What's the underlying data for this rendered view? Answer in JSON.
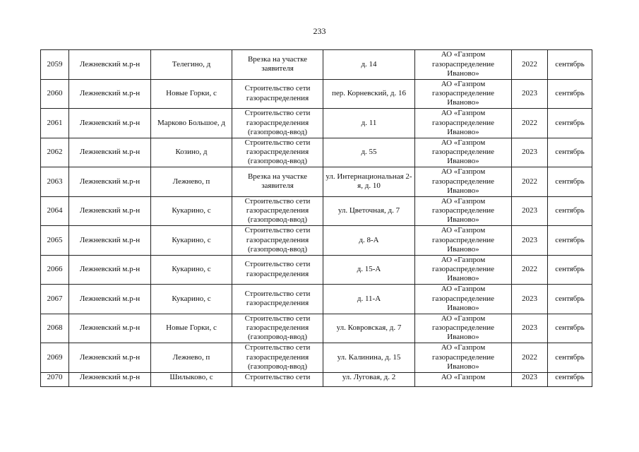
{
  "page_number": "233",
  "rows": [
    {
      "num": "2059",
      "district": "Лежневский м.р-н",
      "locality": "Телегино, д",
      "work": "Врезка на участке заявителя",
      "address": "д. 14",
      "org": "АО «Газпром газораспределение Иваново»",
      "year": "2022",
      "month": "сентябрь"
    },
    {
      "num": "2060",
      "district": "Лежневский м.р-н",
      "locality": "Новые Горки, с",
      "work": "Строительство сети газораспределения",
      "address": "пер. Корневский, д. 16",
      "org": "АО «Газпром газораспределение Иваново»",
      "year": "2023",
      "month": "сентябрь"
    },
    {
      "num": "2061",
      "district": "Лежневский м.р-н",
      "locality": "Марково Большое, д",
      "work": "Строительство сети газораспределения (газопровод-ввод)",
      "address": "д. 11",
      "org": "АО «Газпром газораспределение Иваново»",
      "year": "2022",
      "month": "сентябрь"
    },
    {
      "num": "2062",
      "district": "Лежневский м.р-н",
      "locality": "Козино, д",
      "work": "Строительство сети газораспределения (газопровод-ввод)",
      "address": "д. 55",
      "org": "АО «Газпром газораспределение Иваново»",
      "year": "2023",
      "month": "сентябрь"
    },
    {
      "num": "2063",
      "district": "Лежневский м.р-н",
      "locality": "Лежнево, п",
      "work": "Врезка на участке заявителя",
      "address": "ул. Интернациональная 2-я, д. 10",
      "org": "АО «Газпром газораспределение Иваново»",
      "year": "2022",
      "month": "сентябрь"
    },
    {
      "num": "2064",
      "district": "Лежневский м.р-н",
      "locality": "Кукарино, с",
      "work": "Строительство сети газораспределения (газопровод-ввод)",
      "address": "ул. Цветочная, д. 7",
      "org": "АО «Газпром газораспределение Иваново»",
      "year": "2023",
      "month": "сентябрь"
    },
    {
      "num": "2065",
      "district": "Лежневский м.р-н",
      "locality": "Кукарино, с",
      "work": "Строительство сети газораспределения (газопровод-ввод)",
      "address": "д. 8-А",
      "org": "АО «Газпром газораспределение Иваново»",
      "year": "2023",
      "month": "сентябрь"
    },
    {
      "num": "2066",
      "district": "Лежневский м.р-н",
      "locality": "Кукарино, с",
      "work": "Строительство сети газораспределения",
      "address": "д. 15-А",
      "org": "АО «Газпром газораспределение Иваново»",
      "year": "2022",
      "month": "сентябрь"
    },
    {
      "num": "2067",
      "district": "Лежневский м.р-н",
      "locality": "Кукарино, с",
      "work": "Строительство сети газораспределения",
      "address": "д. 11-А",
      "org": "АО «Газпром газораспределение Иваново»",
      "year": "2023",
      "month": "сентябрь"
    },
    {
      "num": "2068",
      "district": "Лежневский м.р-н",
      "locality": "Новые Горки, с",
      "work": "Строительство сети газораспределения (газопровод-ввод)",
      "address": "ул. Ковровская, д. 7",
      "org": "АО «Газпром газораспределение Иваново»",
      "year": "2023",
      "month": "сентябрь"
    },
    {
      "num": "2069",
      "district": "Лежневский м.р-н",
      "locality": "Лежнево, п",
      "work": "Строительство сети газораспределения (газопровод-ввод)",
      "address": "ул. Калинина, д. 15",
      "org": "АО «Газпром газораспределение Иваново»",
      "year": "2022",
      "month": "сентябрь"
    },
    {
      "num": "2070",
      "district": "Лежневский м.р-н",
      "locality": "Шилыково, с",
      "work": "Строительство сети",
      "address": "ул. Луговая, д. 2",
      "org": "АО «Газпром",
      "year": "2023",
      "month": "сентябрь"
    }
  ]
}
